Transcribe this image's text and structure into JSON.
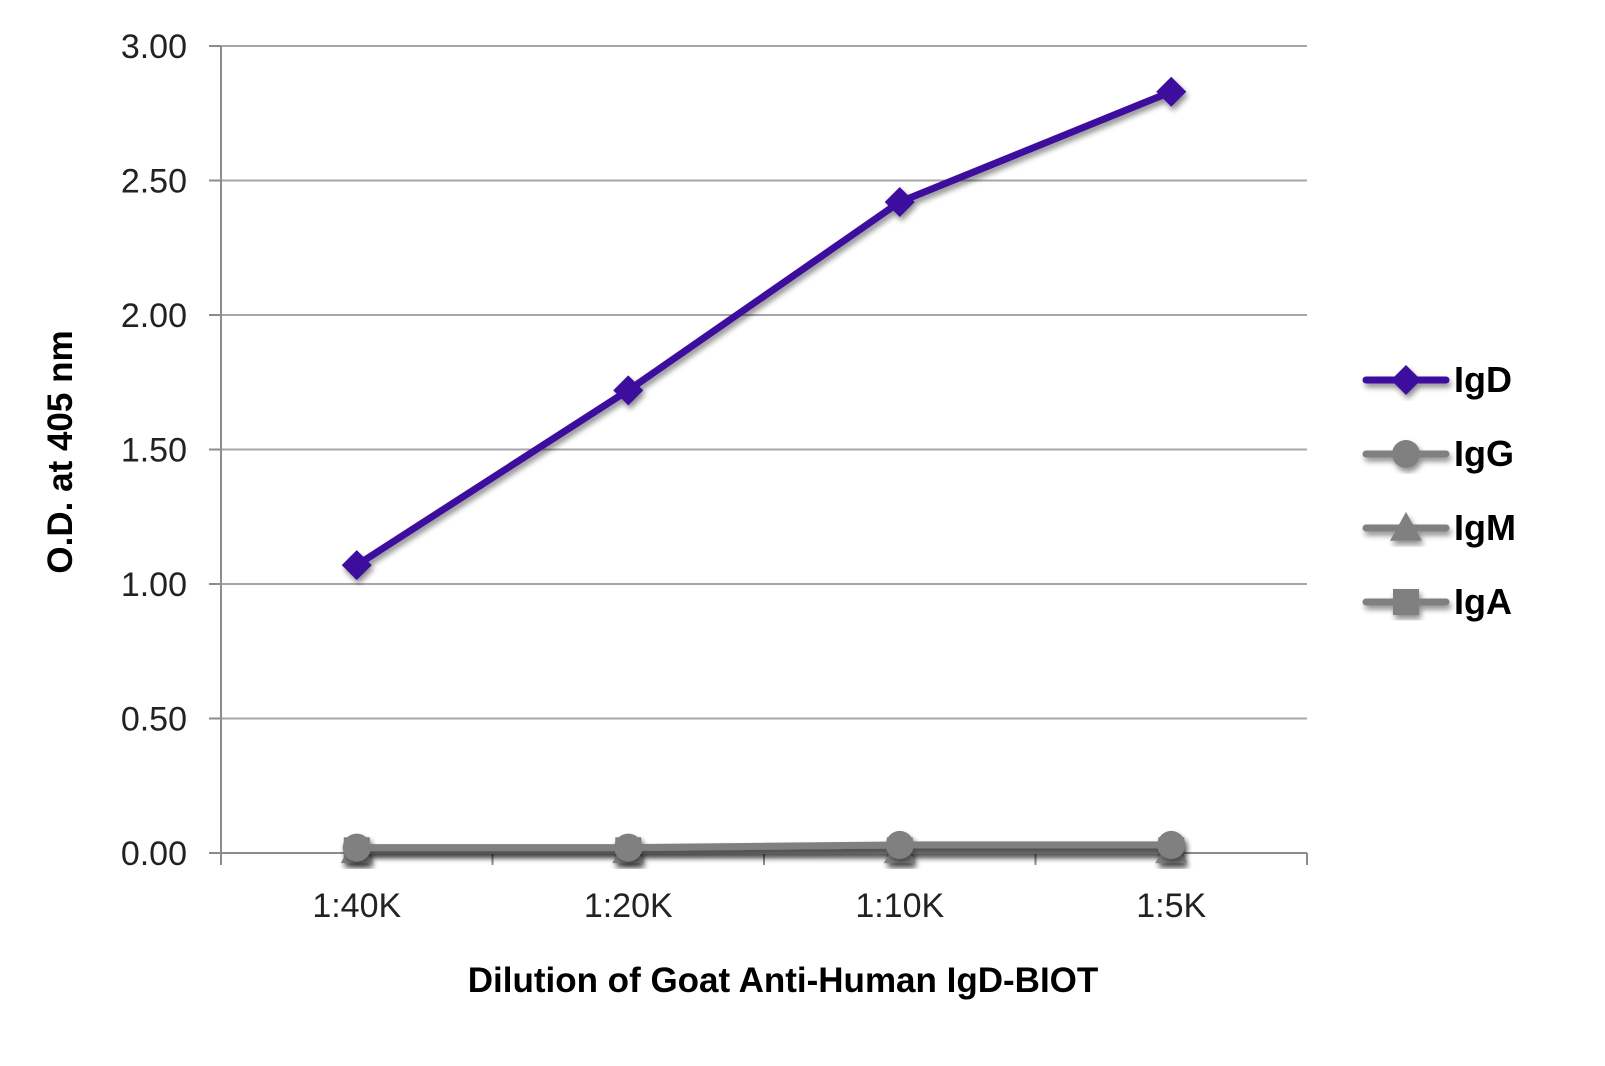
{
  "chart_data": {
    "type": "line",
    "title": "",
    "xlabel": "Dilution of Goat Anti-Human IgD-BIOT",
    "ylabel": "O.D. at 405 nm",
    "categories": [
      "1:40K",
      "1:20K",
      "1:10K",
      "1:5K"
    ],
    "ylim": [
      0,
      3.0
    ],
    "yticks": [
      0,
      0.5,
      1.0,
      1.5,
      2.0,
      2.5,
      3.0
    ],
    "ytick_labels": [
      "0.00",
      "0.50",
      "1.00",
      "1.50",
      "2.00",
      "2.50",
      "3.00"
    ],
    "grid": "horizontal",
    "legend_position": "right",
    "series": [
      {
        "name": "IgD",
        "marker": "diamond",
        "color": "#3d0f9e",
        "values": [
          1.07,
          1.72,
          2.42,
          2.83
        ]
      },
      {
        "name": "IgG",
        "marker": "circle",
        "color": "#808080",
        "values": [
          0.02,
          0.02,
          0.03,
          0.03
        ]
      },
      {
        "name": "IgM",
        "marker": "triangle",
        "color": "#808080",
        "values": [
          0.01,
          0.01,
          0.01,
          0.01
        ]
      },
      {
        "name": "IgA",
        "marker": "square",
        "color": "#808080",
        "values": [
          0.01,
          0.01,
          0.01,
          0.01
        ]
      }
    ]
  }
}
